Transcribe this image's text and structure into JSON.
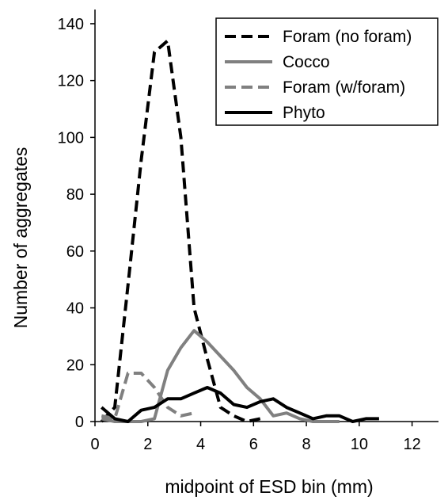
{
  "chart_data": {
    "type": "line",
    "title": "",
    "xlabel": "midpoint of ESD bin (mm)",
    "ylabel": "Number of aggregates",
    "xlim": [
      0,
      13
    ],
    "ylim": [
      0,
      145
    ],
    "xticks": [
      0,
      2,
      4,
      6,
      8,
      10,
      12
    ],
    "yticks": [
      0,
      20,
      40,
      60,
      80,
      100,
      120,
      140
    ],
    "grid": false,
    "legend_position": "top-right",
    "series": [
      {
        "name": "Foram (no foram)",
        "color": "#000000",
        "style": "dashed",
        "x": [
          0.25,
          0.75,
          1.25,
          1.75,
          2.25,
          2.75,
          3.25,
          3.75,
          4.25,
          4.75,
          5.25,
          5.75,
          6.25
        ],
        "y": [
          0,
          5,
          48,
          92,
          130,
          134,
          100,
          40,
          22,
          5,
          2,
          0,
          1
        ]
      },
      {
        "name": "Cocco",
        "color": "#808080",
        "style": "solid",
        "x": [
          0.25,
          0.75,
          1.25,
          1.75,
          2.25,
          2.75,
          3.25,
          3.75,
          4.25,
          4.75,
          5.25,
          5.75,
          6.25,
          6.75,
          7.25,
          7.75,
          8.25,
          8.75,
          9.25
        ],
        "y": [
          1,
          0,
          0,
          0,
          1,
          18,
          26,
          32,
          28,
          23,
          18,
          12,
          8,
          2,
          3,
          1,
          0,
          0,
          0
        ]
      },
      {
        "name": "Foram (w/foram)",
        "color": "#808080",
        "style": "dashed",
        "x": [
          0.25,
          0.75,
          1.25,
          1.75,
          2.25,
          2.75,
          3.25,
          3.75
        ],
        "y": [
          2,
          1,
          17,
          17,
          12,
          5,
          2,
          3
        ]
      },
      {
        "name": "Phyto",
        "color": "#000000",
        "style": "solid",
        "x": [
          0.25,
          0.75,
          1.25,
          1.75,
          2.25,
          2.75,
          3.25,
          3.75,
          4.25,
          4.75,
          5.25,
          5.75,
          6.25,
          6.75,
          7.25,
          7.75,
          8.25,
          8.75,
          9.25,
          9.75,
          10.25,
          10.75
        ],
        "y": [
          5,
          1,
          0,
          4,
          5,
          8,
          8,
          10,
          12,
          10,
          6,
          5,
          7,
          8,
          5,
          3,
          1,
          2,
          2,
          0,
          1,
          1
        ]
      }
    ]
  }
}
